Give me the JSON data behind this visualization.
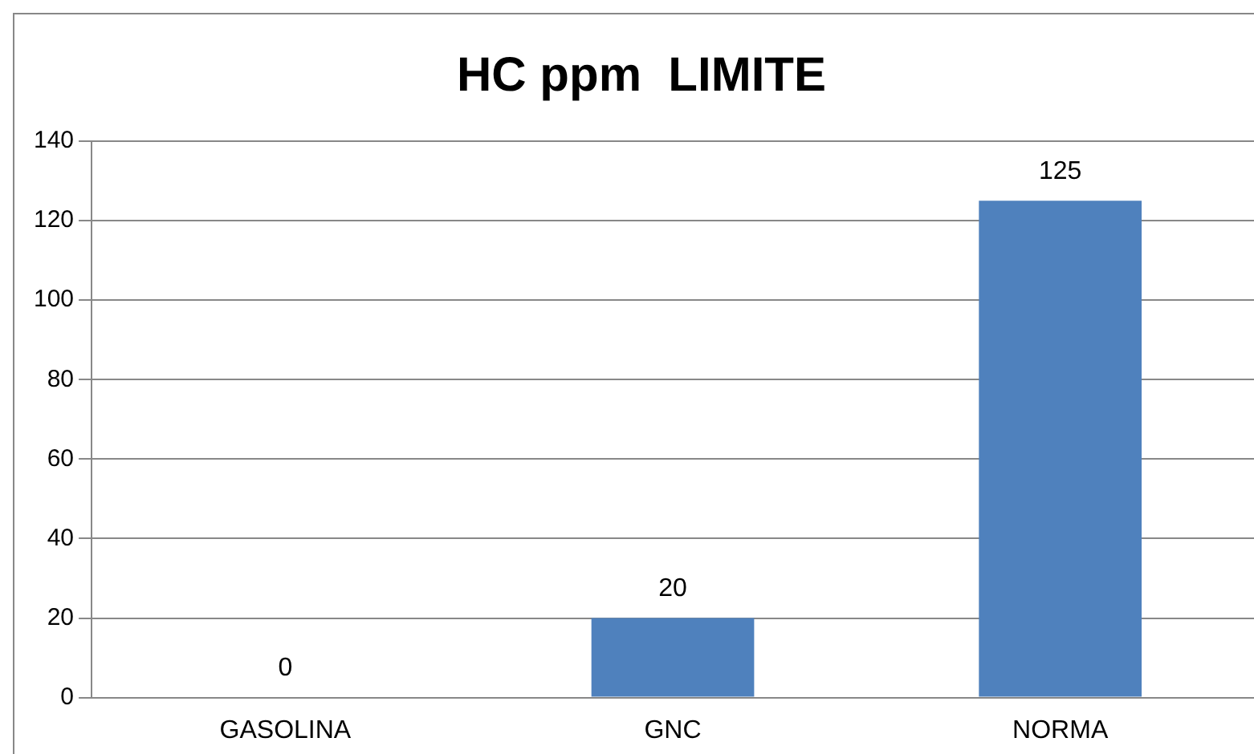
{
  "chart_data": {
    "type": "bar",
    "title": "HC ppm  LIMITE",
    "categories": [
      "GASOLINA",
      "GNC",
      "NORMA"
    ],
    "values": [
      0,
      20,
      125
    ],
    "color": "#4f81bd",
    "ylim": [
      0,
      140
    ],
    "yticks": [
      0,
      20,
      40,
      60,
      80,
      100,
      120,
      140
    ],
    "grid": "y",
    "data_labels": true,
    "legend": false
  }
}
